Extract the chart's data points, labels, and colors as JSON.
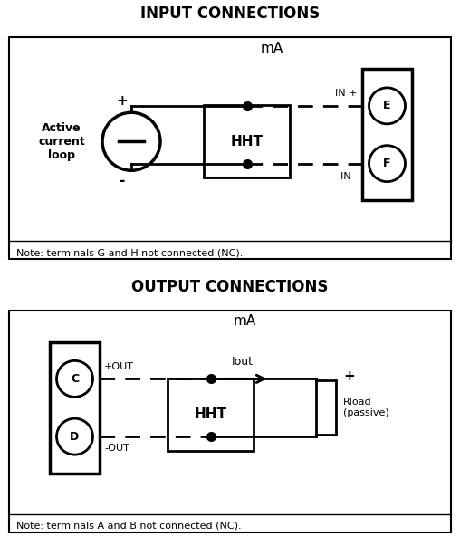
{
  "title_input": "INPUT CONNECTIONS",
  "title_output": "OUTPUT CONNECTIONS",
  "note_input": "Note: terminals G and H not connected (NC).",
  "note_output": "Note: terminals A and B not connected (NC).",
  "mA_label": "mA",
  "HHT_label": "HHT",
  "E_label": "E",
  "F_label": "F",
  "C_label": "C",
  "D_label": "D",
  "IN_plus": "IN +",
  "IN_minus": "IN -",
  "OUT_plus": "+OUT",
  "OUT_minus": "-OUT",
  "Iout_label": "Iout",
  "Rload_label": "Rload\n(passive)",
  "active_loop_label": "Active\ncurrent\nloop",
  "plus_label": "+",
  "minus_label": "-",
  "bg_color": "#ffffff"
}
